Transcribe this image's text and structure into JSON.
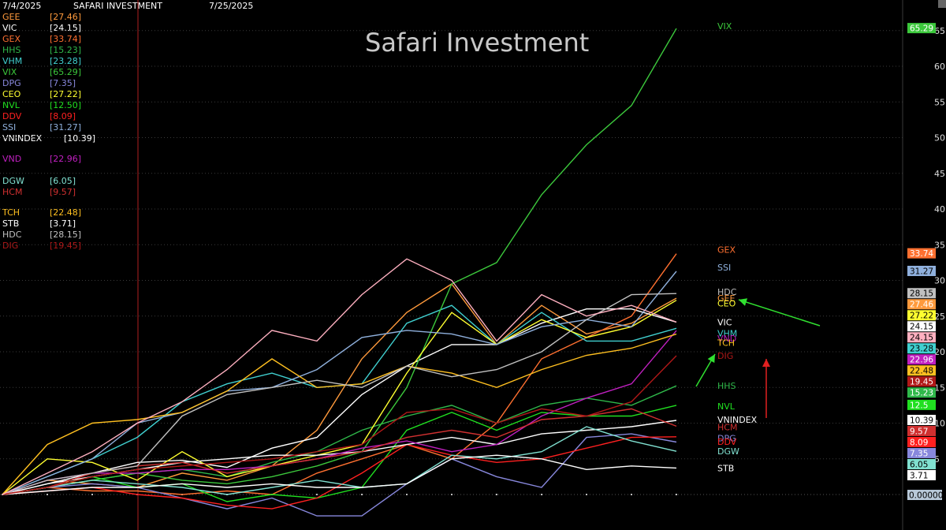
{
  "header": {
    "start_date": "7/4/2025",
    "app_name": "SAFARI INVESTMENT",
    "end_date": "7/25/2025"
  },
  "chart_data": {
    "type": "line",
    "title": "Safari Investment",
    "y_axis": {
      "side": "right",
      "ylim": [
        -1.5,
        67.5
      ],
      "ticks": [
        5,
        10,
        15,
        20,
        25,
        30,
        35,
        40,
        45,
        50,
        55,
        60,
        65
      ]
    },
    "grid": "horizontal-dotted",
    "legend": "top-left",
    "series": [
      {
        "name": "GEE",
        "legend_value": "[27.46]",
        "last_value": "27.46",
        "color": "#ff9a3c",
        "values": [
          0,
          2,
          1.5,
          1,
          3,
          2,
          4,
          9,
          19,
          25.5,
          29.5,
          21,
          26.5,
          22.5,
          24,
          27.5
        ]
      },
      {
        "name": "VIC",
        "legend_value": "[24.15]",
        "last_value": "24.15",
        "color": "#ffffff",
        "values": [
          0,
          1.5,
          3,
          4.5,
          4.8,
          3.8,
          6.5,
          8,
          14,
          18,
          21,
          21,
          24,
          26,
          26,
          24.15
        ]
      },
      {
        "name": "GEX",
        "legend_value": "[33.74]",
        "last_value": "33.74",
        "color": "#ff7030",
        "values": [
          0,
          1,
          0.5,
          0.5,
          0,
          0.5,
          0,
          3,
          5,
          7,
          5,
          10,
          19,
          22,
          25,
          33.74
        ]
      },
      {
        "name": "HHS",
        "legend_value": "[15.23]",
        "last_value": "15.23",
        "color": "#2fb84a",
        "values": [
          0,
          1,
          2,
          3,
          3.5,
          2.5,
          4.5,
          6,
          9,
          11,
          12.5,
          10,
          12.5,
          13.5,
          12.5,
          15.23
        ]
      },
      {
        "name": "VHM",
        "legend_value": "[23.28]",
        "last_value": "23.28",
        "color": "#40d0d0",
        "values": [
          0,
          2.5,
          5,
          8,
          13,
          15.5,
          17,
          15,
          15.5,
          24,
          26.5,
          21,
          25.5,
          21.5,
          21.5,
          23.28
        ]
      },
      {
        "name": "VIX",
        "legend_value": "[65.29]",
        "last_value": "65.29",
        "color": "#3cc83c",
        "values": [
          0,
          1,
          2,
          3,
          2,
          1.5,
          2.5,
          4,
          6,
          15,
          29.5,
          32.5,
          42,
          49,
          54.5,
          65.29
        ]
      },
      {
        "name": "DPG",
        "legend_value": "[7.35]",
        "last_value": "7.35",
        "color": "#8888dd",
        "values": [
          0,
          1,
          1.5,
          1,
          -0.5,
          -2,
          -0.5,
          -3,
          -3,
          1.5,
          5,
          2.5,
          1,
          8,
          8.5,
          7.35
        ]
      },
      {
        "name": "CEO",
        "legend_value": "[27.22]",
        "last_value": "27.22",
        "color": "#ffff30",
        "values": [
          0,
          5,
          4.5,
          2,
          6,
          2.5,
          4,
          5.5,
          7,
          17,
          25.5,
          21,
          24.5,
          22,
          23.5,
          27.22
        ]
      },
      {
        "name": "NVL",
        "legend_value": "[12.50]",
        "last_value": "12.5",
        "color": "#20e020",
        "values": [
          0,
          1,
          2.5,
          1,
          1.5,
          -1,
          0,
          -0.5,
          1,
          9,
          11.5,
          9,
          11.5,
          11,
          11,
          12.5
        ]
      },
      {
        "name": "DDV",
        "legend_value": "[8.09]",
        "last_value": "8.09",
        "color": "#ff2020",
        "values": [
          0,
          0.5,
          1,
          0,
          -0.5,
          -1.5,
          -2,
          -0.5,
          3,
          7,
          5.5,
          4.5,
          5,
          6.5,
          8,
          8.09
        ]
      },
      {
        "name": "SSI",
        "legend_value": "[31.27]",
        "last_value": "31.27",
        "color": "#8fb0dd",
        "values": [
          0,
          2.5,
          5,
          10,
          11.5,
          14.5,
          15,
          17.5,
          22,
          23,
          22.5,
          21,
          23.5,
          24.5,
          23.5,
          31.27
        ]
      },
      {
        "name": "VNINDEX",
        "legend_value": "[10.39]",
        "last_value": "10.39",
        "color": "#ffffff",
        "values": [
          0,
          1.5,
          2.5,
          3.5,
          4.5,
          5,
          5.5,
          5.5,
          6,
          7,
          8,
          7,
          8.5,
          9,
          9.5,
          10.39
        ]
      },
      {
        "name": "VND",
        "legend_value": "[22.96]",
        "last_value": "22.96",
        "color": "#c020c0",
        "values": [
          0,
          2,
          3,
          3,
          3.5,
          3.5,
          4,
          5,
          6.5,
          7.5,
          6,
          7,
          11,
          13.5,
          15.5,
          22.96
        ]
      },
      {
        "name": "DGW",
        "legend_value": "[6.05]",
        "last_value": "6.05",
        "color": "#80e0d0",
        "values": [
          0,
          1,
          2,
          1.5,
          1,
          0,
          1,
          2,
          1,
          1.5,
          5.5,
          5,
          6,
          9.5,
          7.5,
          6.05
        ]
      },
      {
        "name": "HCM",
        "legend_value": "[9.57]",
        "last_value": "9.57",
        "color": "#d03030",
        "values": [
          0,
          1,
          3,
          4,
          4.5,
          3,
          4,
          5,
          6,
          8,
          9,
          8,
          10.5,
          11,
          12,
          9.57
        ]
      },
      {
        "name": "TCH",
        "legend_value": "[22.48]",
        "last_value": "22.48",
        "color": "#ffc020",
        "values": [
          0,
          7,
          10,
          10.5,
          11.5,
          14.5,
          19,
          15,
          15.5,
          18,
          17,
          15,
          17.5,
          19.5,
          20.5,
          22.48
        ]
      },
      {
        "name": "STB",
        "legend_value": "[3.71]",
        "last_value": "3.71",
        "color": "#ffffff",
        "values": [
          0,
          0.5,
          1,
          1,
          1.5,
          1,
          1.5,
          1,
          1,
          1.5,
          5,
          5.5,
          5,
          3.5,
          4,
          3.71
        ]
      },
      {
        "name": "HDC",
        "legend_value": "[28.15]",
        "last_value": "28.15",
        "color": "#c0c0c0",
        "values": [
          0,
          2,
          3,
          4,
          11,
          14,
          15,
          16,
          15,
          18,
          16.5,
          17.5,
          20,
          24.5,
          28,
          28.15
        ]
      },
      {
        "name": "DIG",
        "legend_value": "[19.45]",
        "last_value": "19.45",
        "color": "#b01818",
        "values": [
          0,
          1,
          2.5,
          3.5,
          4,
          4.5,
          5,
          6,
          7,
          11.5,
          12,
          10,
          12,
          11,
          13,
          19.45
        ]
      },
      {
        "name": "",
        "legend_value": "",
        "last_value": "24.15",
        "color": "#ffb0c0",
        "values": [
          0,
          3,
          6,
          10,
          13,
          17.5,
          23,
          21.5,
          28,
          33,
          30,
          21.5,
          28,
          25,
          26.5,
          24.15
        ]
      }
    ],
    "baseline_value": "0.00000",
    "annotations": [
      {
        "type": "arrow",
        "color": "#30e030",
        "label": "points-to-CEO"
      },
      {
        "type": "arrow",
        "color": "#30e030",
        "label": "points-to-DIG"
      },
      {
        "type": "arrow",
        "color": "#e02020",
        "label": "points-up"
      }
    ]
  }
}
